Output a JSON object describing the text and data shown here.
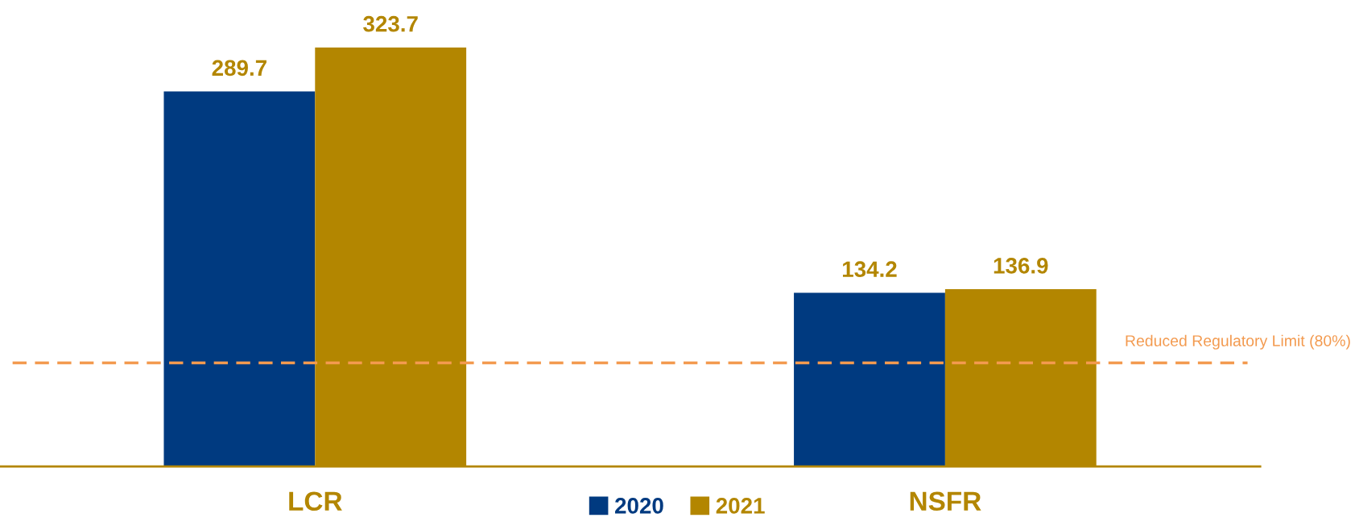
{
  "chart_data": {
    "type": "bar",
    "categories": [
      "LCR",
      "NSFR"
    ],
    "series": [
      {
        "name": "2020",
        "color": "#003a80",
        "values": [
          289.7,
          134.2
        ]
      },
      {
        "name": "2021",
        "color": "#b38600",
        "values": [
          323.7,
          136.9
        ]
      }
    ],
    "data_labels": true,
    "legend": "bottom",
    "grid": false,
    "ref_lines": [
      {
        "axis": "y",
        "value": 80,
        "label": "Reduced Regulatory Limit (80%)",
        "color": "#f39a4f",
        "line_style": "dashed"
      }
    ]
  }
}
